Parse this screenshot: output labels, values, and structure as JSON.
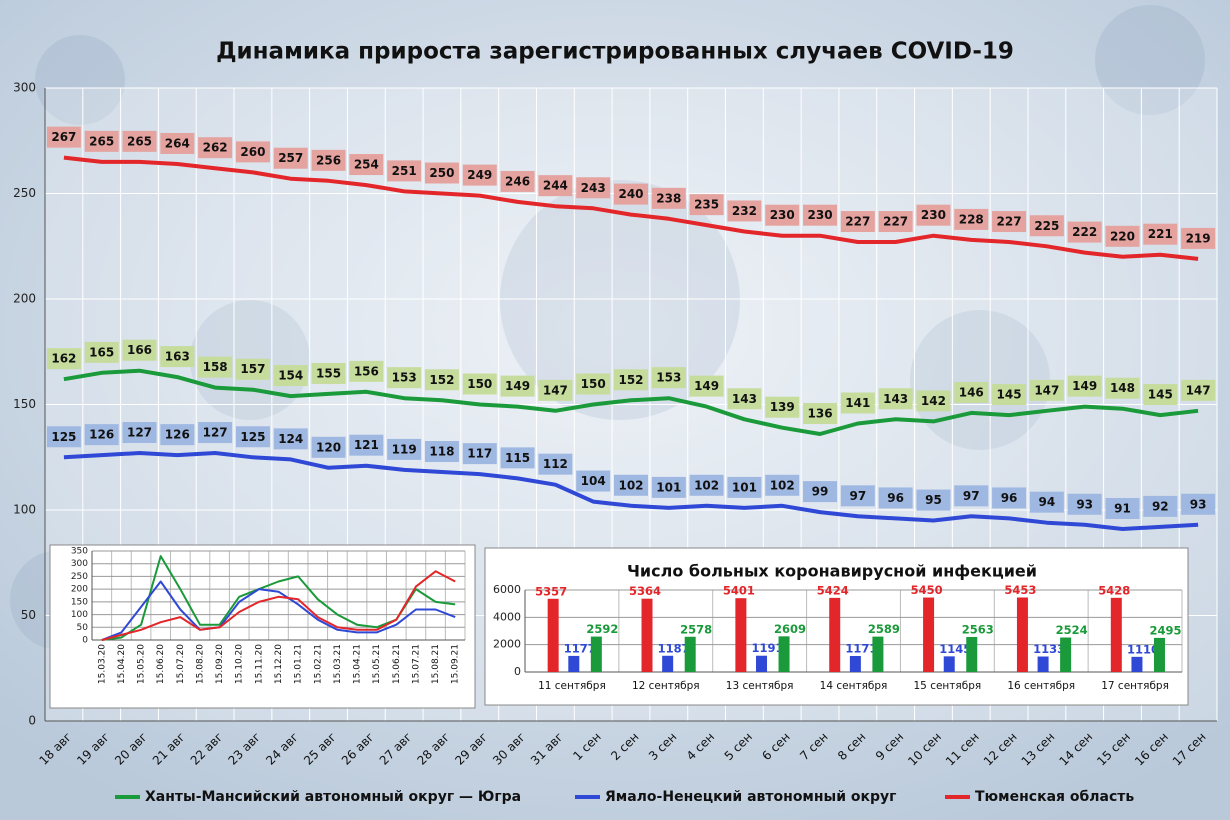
{
  "chart_data": [
    {
      "type": "line",
      "title": "Динамика прироста зарегистрированных случаев COVID-19",
      "categories": [
        "18 авг",
        "19 авг",
        "20 авг",
        "21 авг",
        "22 авг",
        "23 авг",
        "24 авг",
        "25 авг",
        "26 авг",
        "27 авг",
        "28 авг",
        "29 авг",
        "30 авг",
        "31 авг",
        "1 сен",
        "2 сен",
        "3 сен",
        "4 сен",
        "5 сен",
        "6 сен",
        "7 сен",
        "8 сен",
        "9 сен",
        "10 сен",
        "11 сен",
        "12 сен",
        "13 сен",
        "14 сен",
        "15 сен",
        "16 сен",
        "17 сен"
      ],
      "series": [
        {
          "name": "Ханты-Мансийский автономный округ — Югра",
          "color": "#1a9a3a",
          "label_color": "#c6dc9c",
          "values": [
            162,
            165,
            166,
            163,
            158,
            157,
            154,
            155,
            156,
            153,
            152,
            150,
            149,
            147,
            150,
            152,
            153,
            149,
            143,
            139,
            136,
            141,
            143,
            142,
            146,
            145,
            147,
            149,
            148,
            145,
            147
          ]
        },
        {
          "name": "Ямало-Ненецкий автономный округ",
          "color": "#2f49d6",
          "label_color": "#9fb8e2",
          "values": [
            125,
            126,
            127,
            126,
            127,
            125,
            124,
            120,
            121,
            119,
            118,
            117,
            115,
            112,
            104,
            102,
            101,
            102,
            101,
            102,
            99,
            97,
            96,
            95,
            97,
            96,
            94,
            93,
            91,
            92,
            93
          ]
        },
        {
          "name": "Тюменская область",
          "color": "#e3262a",
          "label_color": "#e5a3a0",
          "values": [
            267,
            265,
            265,
            264,
            262,
            260,
            257,
            256,
            254,
            251,
            250,
            249,
            246,
            244,
            243,
            240,
            238,
            235,
            232,
            230,
            230,
            227,
            227,
            230,
            228,
            227,
            225,
            222,
            220,
            221,
            219
          ]
        }
      ],
      "ylim": [
        0,
        300
      ],
      "yticks": [
        0,
        50,
        100,
        150,
        200,
        250,
        300
      ],
      "grid": true,
      "legend": "bottom"
    },
    {
      "type": "line",
      "categories": [
        "15.03.20",
        "15.04.20",
        "15.05.20",
        "15.06.20",
        "15.07.20",
        "15.08.20",
        "15.09.20",
        "15.10.20",
        "15.11.20",
        "15.12.20",
        "15.01.21",
        "15.02.21",
        "15.03.21",
        "15.04.21",
        "15.05.21",
        "15.06.21",
        "15.07.21",
        "15.08.21",
        "15.09.21"
      ],
      "series": [
        {
          "color": "#1a9a3a",
          "values": [
            0,
            10,
            60,
            330,
            200,
            60,
            60,
            170,
            200,
            230,
            250,
            160,
            100,
            60,
            50,
            80,
            200,
            150,
            140
          ]
        },
        {
          "color": "#2f49d6",
          "values": [
            0,
            30,
            130,
            230,
            120,
            40,
            50,
            150,
            200,
            190,
            140,
            80,
            40,
            30,
            30,
            60,
            120,
            120,
            90
          ]
        },
        {
          "color": "#e3262a",
          "values": [
            0,
            20,
            40,
            70,
            90,
            40,
            50,
            110,
            150,
            170,
            160,
            90,
            50,
            40,
            40,
            80,
            210,
            270,
            230
          ]
        }
      ],
      "ylim": [
        0,
        350
      ],
      "yticks": [
        0,
        50,
        100,
        150,
        200,
        250,
        300,
        350
      ],
      "grid": true
    },
    {
      "type": "bar",
      "title": "Число больных коронавирусной инфекцией",
      "categories": [
        "11 сентября",
        "12 сентября",
        "13 сентября",
        "14 сентября",
        "15 сентября",
        "16 сентября",
        "17 сентября"
      ],
      "series": [
        {
          "color": "#e3262a",
          "values": [
            5357,
            5364,
            5401,
            5424,
            5450,
            5453,
            5428
          ]
        },
        {
          "color": "#2f49d6",
          "values": [
            1177,
            1187,
            1191,
            1171,
            1145,
            1133,
            1110
          ]
        },
        {
          "color": "#1a9a3a",
          "values": [
            2592,
            2578,
            2609,
            2589,
            2563,
            2524,
            2495
          ]
        }
      ],
      "ylim": [
        0,
        6000
      ],
      "yticks": [
        0,
        2000,
        4000,
        6000
      ],
      "grid": true
    }
  ]
}
